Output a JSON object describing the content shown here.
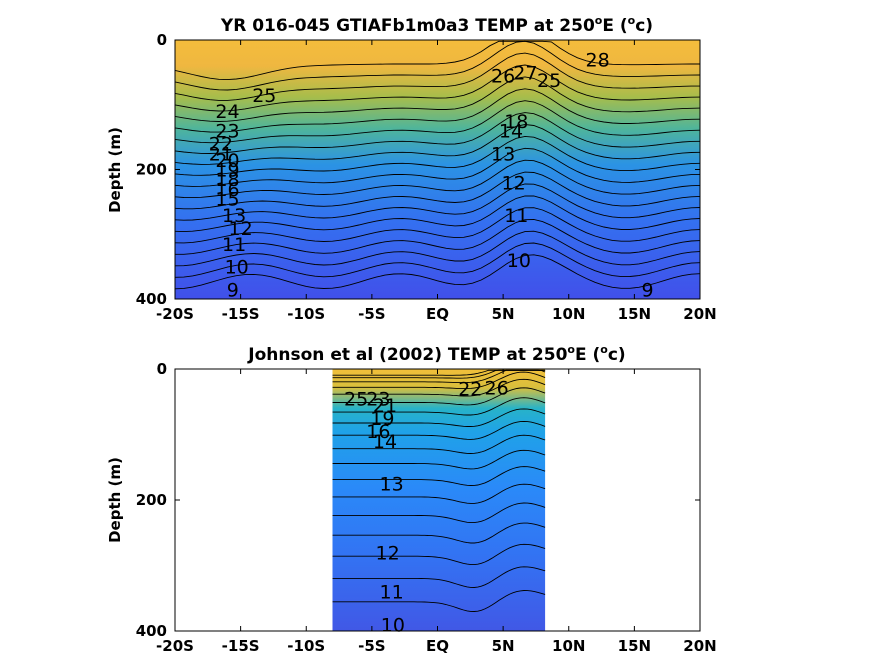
{
  "colors": {
    "background": "#ffffff",
    "axis": "#000000",
    "colormap": [
      "#3e26a8",
      "#4253f0",
      "#2d8dfa",
      "#1fb0e0",
      "#2ec7a8",
      "#80cc55",
      "#d5bb33",
      "#f8d027",
      "#f9fb15"
    ]
  },
  "chart_data": [
    {
      "type": "contour",
      "title": "YR 016-045 GTIAFb1m0a3 TEMP at 250",
      "title_sup": "o",
      "title_tail": "E (",
      "title_sup2": "o",
      "title_end": "c)",
      "ylabel": "Depth (m)",
      "xlabel": "",
      "xlim": [
        -20,
        20
      ],
      "ylim": [
        400,
        0
      ],
      "x_ticks": [
        -20,
        -15,
        -10,
        -5,
        0,
        5,
        10,
        15,
        20
      ],
      "x_tick_labels": [
        "-20S",
        "-15S",
        "-10S",
        "-5S",
        "EQ",
        "5N",
        "10N",
        "15N",
        "20N"
      ],
      "y_ticks": [
        0,
        200,
        400
      ],
      "y_tick_labels": [
        "0",
        "200",
        "400"
      ],
      "data_extent_lat": [
        -20,
        20
      ],
      "contour_levels": [
        9,
        10,
        11,
        12,
        13,
        14,
        15,
        16,
        17,
        18,
        19,
        20,
        21,
        22,
        23,
        24,
        25,
        26,
        27,
        28
      ],
      "contour_labels": [
        {
          "text": "28",
          "lat": 12.2,
          "depth": 30
        },
        {
          "text": "27",
          "lat": 6.7,
          "depth": 50
        },
        {
          "text": "26",
          "lat": 5.0,
          "depth": 55
        },
        {
          "text": "25",
          "lat": 8.5,
          "depth": 62
        },
        {
          "text": "25",
          "lat": -13.2,
          "depth": 85
        },
        {
          "text": "24",
          "lat": -16.0,
          "depth": 110
        },
        {
          "text": "23",
          "lat": -16.0,
          "depth": 140
        },
        {
          "text": "22",
          "lat": -16.5,
          "depth": 160
        },
        {
          "text": "21",
          "lat": -16.5,
          "depth": 175
        },
        {
          "text": "20",
          "lat": -16.0,
          "depth": 185
        },
        {
          "text": "19",
          "lat": -16.0,
          "depth": 200
        },
        {
          "text": "18",
          "lat": -16.0,
          "depth": 215
        },
        {
          "text": "16",
          "lat": -16.0,
          "depth": 230
        },
        {
          "text": "15",
          "lat": -16.0,
          "depth": 245
        },
        {
          "text": "13",
          "lat": -15.5,
          "depth": 270
        },
        {
          "text": "12",
          "lat": -15.0,
          "depth": 290
        },
        {
          "text": "11",
          "lat": -15.5,
          "depth": 315
        },
        {
          "text": "10",
          "lat": -15.3,
          "depth": 350
        },
        {
          "text": "9",
          "lat": -15.6,
          "depth": 385
        },
        {
          "text": "18",
          "lat": 6.0,
          "depth": 125
        },
        {
          "text": "14",
          "lat": 5.6,
          "depth": 140
        },
        {
          "text": "13",
          "lat": 5.0,
          "depth": 175
        },
        {
          "text": "12",
          "lat": 5.8,
          "depth": 220
        },
        {
          "text": "11",
          "lat": 6.0,
          "depth": 270
        },
        {
          "text": "10",
          "lat": 6.2,
          "depth": 340
        },
        {
          "text": "9",
          "lat": 16.0,
          "depth": 385
        }
      ]
    },
    {
      "type": "contour",
      "title": "Johnson et al (2002) TEMP at 250",
      "title_sup": "o",
      "title_tail": "E (",
      "title_sup2": "o",
      "title_end": "c)",
      "ylabel": "Depth (m)",
      "xlabel": "",
      "xlim": [
        -20,
        20
      ],
      "ylim": [
        400,
        0
      ],
      "x_ticks": [
        -20,
        -15,
        -10,
        -5,
        0,
        5,
        10,
        15,
        20
      ],
      "x_tick_labels": [
        "-20S",
        "-15S",
        "-10S",
        "-5S",
        "EQ",
        "5N",
        "10N",
        "15N",
        "20N"
      ],
      "y_ticks": [
        0,
        200,
        400
      ],
      "y_tick_labels": [
        "0",
        "200",
        "400"
      ],
      "data_extent_lat": [
        -8,
        8.2
      ],
      "contour_levels": [
        10,
        11,
        12,
        13,
        14,
        15,
        16,
        17,
        18,
        19,
        20,
        21,
        22,
        23,
        24,
        25,
        26,
        27
      ],
      "contour_labels": [
        {
          "text": "25",
          "lat": -6.2,
          "depth": 45
        },
        {
          "text": "23",
          "lat": -4.5,
          "depth": 45
        },
        {
          "text": "21",
          "lat": -4.0,
          "depth": 55
        },
        {
          "text": "19",
          "lat": -4.2,
          "depth": 75
        },
        {
          "text": "16",
          "lat": -4.5,
          "depth": 95
        },
        {
          "text": "14",
          "lat": -4.0,
          "depth": 110
        },
        {
          "text": "22",
          "lat": 2.5,
          "depth": 30
        },
        {
          "text": "26",
          "lat": 4.5,
          "depth": 28
        },
        {
          "text": "13",
          "lat": -3.5,
          "depth": 175
        },
        {
          "text": "12",
          "lat": -3.8,
          "depth": 280
        },
        {
          "text": "11",
          "lat": -3.5,
          "depth": 340
        },
        {
          "text": "10",
          "lat": -3.4,
          "depth": 390
        }
      ]
    }
  ]
}
